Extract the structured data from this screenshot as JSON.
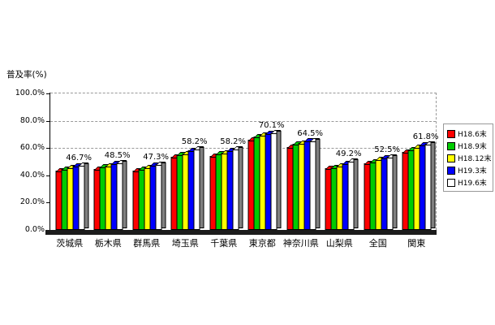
{
  "chart_data": {
    "type": "bar",
    "title": "",
    "ylabel": "普及率(%)",
    "xlabel": "",
    "ylim": [
      0,
      100
    ],
    "y_ticks": [
      {
        "pct": 0,
        "label": "0.0%"
      },
      {
        "pct": 20,
        "label": "20.0%"
      },
      {
        "pct": 40,
        "label": "40.0%"
      },
      {
        "pct": 60,
        "label": "60.0%"
      },
      {
        "pct": 80,
        "label": "80.0%"
      },
      {
        "pct": 100,
        "label": "100.0%"
      }
    ],
    "gridline_pcts": [
      60,
      80
    ],
    "grid": "dashed horizontal lines at 60%, 80%, 100%; dashed top and right plot border",
    "legend_position": "right",
    "categories": [
      "茨城県",
      "栃木県",
      "群馬県",
      "埼玉県",
      "千葉県",
      "東京都",
      "神奈川県",
      "山梨県",
      "全国",
      "関東"
    ],
    "series": [
      {
        "name": "H18.6末",
        "color": "#ff0000",
        "values": [
          42.0,
          43.5,
          42.0,
          52.4,
          52.8,
          64.9,
          59.3,
          43.9,
          47.8,
          55.8
        ]
      },
      {
        "name": "H18.9末",
        "color": "#00cc00",
        "values": [
          43.5,
          45.0,
          43.5,
          54.2,
          54.5,
          67.0,
          62.0,
          44.5,
          49.0,
          58.0
        ]
      },
      {
        "name": "H18.12末",
        "color": "#ffff00",
        "values": [
          44.5,
          46.0,
          44.5,
          55.0,
          55.5,
          68.2,
          62.6,
          45.8,
          50.4,
          59.5
        ]
      },
      {
        "name": "H19.3末",
        "color": "#0000ff",
        "values": [
          46.0,
          47.5,
          46.3,
          57.3,
          57.4,
          69.7,
          64.1,
          47.5,
          52.0,
          61.3
        ]
      },
      {
        "name": "H19.6末",
        "color": "#ffffff",
        "values": [
          46.7,
          48.5,
          47.3,
          58.2,
          58.2,
          70.1,
          64.5,
          49.2,
          52.5,
          61.8
        ]
      }
    ],
    "bar_labels": [
      "46.7%",
      "48.5%",
      "47.3%",
      "58.2%",
      "58.2%",
      "70.1%",
      "64.5%",
      "49.2%",
      "52.5%",
      "61.8%"
    ],
    "bar_label_series": "H19.6末"
  }
}
